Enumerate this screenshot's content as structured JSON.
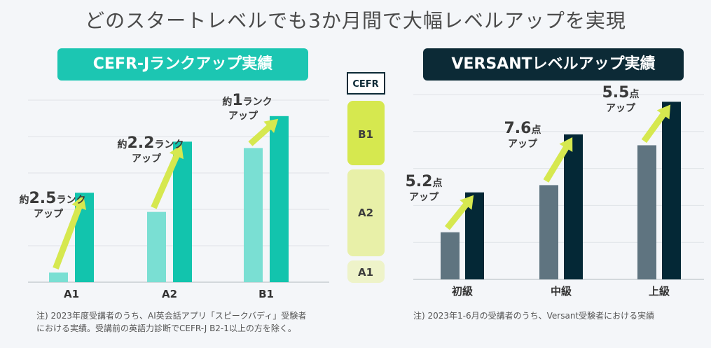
{
  "page_title": "どのスタートレベルでも3か月間で大幅レベルアップを実現",
  "left": {
    "pill": "CEFR-Jランクアップ実績",
    "note_line1": "注) 2023年度受講者のうち、AI英会話アプリ「スピークバディ」受験者",
    "note_line2": "における実績。受講前の英語力診断でCEFR-J B2-1以上の方を除く。"
  },
  "right": {
    "pill": "VERSANTレベルアップ実績",
    "note": "注) 2023年1-6月の受講者のうち、Versant受験者における実績"
  },
  "cefr_scale": {
    "header": "CEFR",
    "levels": [
      "B1",
      "A2",
      "A1"
    ]
  },
  "colors": {
    "teal_light": "#7adfd3",
    "teal": "#12c4ad",
    "navy_light": "#5f7480",
    "navy": "#042836",
    "arrow": "#d6e84f",
    "b1_box": "#d6e84f",
    "a2_box": "#e8f0a8",
    "a1_box": "#eef3c9"
  },
  "chart_data": [
    {
      "type": "bar",
      "categories": [
        "A1",
        "A2",
        "B1"
      ],
      "series": [
        {
          "values": [
            0.3,
            2.2,
            4.2
          ]
        },
        {
          "values": [
            2.8,
            4.4,
            5.2
          ]
        }
      ],
      "ylim": [
        0,
        5.7
      ],
      "grid": true,
      "annotations": [
        {
          "prefix": "約",
          "value": "2.5",
          "unit": "ランク",
          "line2": "アップ"
        },
        {
          "prefix": "約",
          "value": "2.2",
          "unit": "ランク",
          "line2": "アップ"
        },
        {
          "prefix": "約",
          "value": "1",
          "unit": "ランク",
          "line2": "アップ"
        }
      ]
    },
    {
      "type": "bar",
      "categories": [
        "初級",
        "中級",
        "上級"
      ],
      "series": [
        {
          "values": [
            1.3,
            2.6,
            3.7
          ]
        },
        {
          "values": [
            2.4,
            4.0,
            4.9
          ]
        }
      ],
      "ylim": [
        0,
        5.1
      ],
      "grid": true,
      "annotations": [
        {
          "prefix": "",
          "value": "5.2",
          "unit": "点",
          "line2": "アップ"
        },
        {
          "prefix": "",
          "value": "7.6",
          "unit": "点",
          "line2": "アップ"
        },
        {
          "prefix": "",
          "value": "5.5",
          "unit": "点",
          "line2": "アップ"
        }
      ]
    }
  ]
}
